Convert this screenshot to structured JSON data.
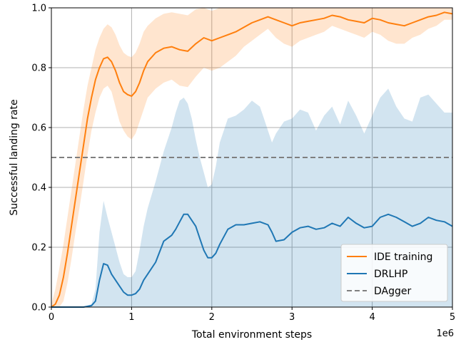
{
  "chart_data": {
    "type": "line",
    "xlabel": "Total environment steps",
    "ylabel": "Successful landing rate",
    "x_multiplier_label": "1e6",
    "xlim": [
      0,
      5
    ],
    "ylim": [
      0,
      1.0
    ],
    "x_ticks": [
      0,
      1,
      2,
      3,
      4,
      5
    ],
    "x_tick_labels": [
      "0",
      "1",
      "2",
      "3",
      "4",
      "5"
    ],
    "y_ticks": [
      0.0,
      0.2,
      0.4,
      0.6,
      0.8,
      1.0
    ],
    "y_tick_labels": [
      "0.0",
      "0.2",
      "0.4",
      "0.6",
      "0.8",
      "1.0"
    ],
    "grid": true,
    "legend_position": "bottom-right",
    "series": [
      {
        "name": "IDE training",
        "color": "#ff7f0e",
        "style": "solid",
        "x": [
          0,
          0.05,
          0.1,
          0.15,
          0.2,
          0.25,
          0.3,
          0.35,
          0.4,
          0.45,
          0.5,
          0.55,
          0.6,
          0.65,
          0.7,
          0.75,
          0.8,
          0.85,
          0.9,
          0.95,
          1.0,
          1.05,
          1.1,
          1.15,
          1.2,
          1.3,
          1.4,
          1.5,
          1.6,
          1.7,
          1.8,
          1.9,
          2.0,
          2.1,
          2.2,
          2.3,
          2.4,
          2.5,
          2.6,
          2.7,
          2.8,
          2.9,
          3.0,
          3.1,
          3.2,
          3.3,
          3.4,
          3.5,
          3.6,
          3.7,
          3.8,
          3.9,
          4.0,
          4.1,
          4.2,
          4.3,
          4.4,
          4.5,
          4.6,
          4.7,
          4.8,
          4.9,
          5.0
        ],
        "y": [
          0.0,
          0.01,
          0.04,
          0.1,
          0.18,
          0.27,
          0.36,
          0.45,
          0.54,
          0.63,
          0.7,
          0.76,
          0.8,
          0.83,
          0.835,
          0.82,
          0.79,
          0.75,
          0.72,
          0.71,
          0.705,
          0.72,
          0.75,
          0.79,
          0.82,
          0.85,
          0.865,
          0.87,
          0.86,
          0.855,
          0.88,
          0.9,
          0.89,
          0.9,
          0.91,
          0.92,
          0.935,
          0.95,
          0.96,
          0.97,
          0.96,
          0.95,
          0.94,
          0.95,
          0.955,
          0.96,
          0.965,
          0.975,
          0.97,
          0.96,
          0.955,
          0.95,
          0.965,
          0.96,
          0.95,
          0.945,
          0.94,
          0.95,
          0.96,
          0.97,
          0.975,
          0.985,
          0.98
        ],
        "upper": [
          0.01,
          0.06,
          0.13,
          0.21,
          0.3,
          0.39,
          0.48,
          0.57,
          0.66,
          0.74,
          0.8,
          0.86,
          0.9,
          0.93,
          0.945,
          0.935,
          0.91,
          0.875,
          0.85,
          0.84,
          0.835,
          0.85,
          0.88,
          0.92,
          0.94,
          0.965,
          0.98,
          0.985,
          0.98,
          0.975,
          0.995,
          1.0,
          0.99,
          1.0,
          1.0,
          1.0,
          1.0,
          1.0,
          1.0,
          1.0,
          1.0,
          1.0,
          1.0,
          1.0,
          1.0,
          1.0,
          1.0,
          1.0,
          1.0,
          1.0,
          1.0,
          1.0,
          1.0,
          1.0,
          1.0,
          1.0,
          1.0,
          1.0,
          1.0,
          1.0,
          1.0,
          1.0,
          1.0
        ],
        "lower": [
          0.0,
          0.0,
          0.0,
          0.02,
          0.08,
          0.16,
          0.25,
          0.33,
          0.42,
          0.51,
          0.59,
          0.65,
          0.7,
          0.73,
          0.74,
          0.72,
          0.67,
          0.62,
          0.59,
          0.57,
          0.56,
          0.58,
          0.62,
          0.66,
          0.7,
          0.73,
          0.75,
          0.76,
          0.74,
          0.735,
          0.77,
          0.8,
          0.79,
          0.8,
          0.82,
          0.84,
          0.87,
          0.89,
          0.91,
          0.93,
          0.9,
          0.88,
          0.87,
          0.89,
          0.9,
          0.91,
          0.92,
          0.94,
          0.93,
          0.92,
          0.91,
          0.9,
          0.92,
          0.91,
          0.89,
          0.88,
          0.88,
          0.9,
          0.91,
          0.93,
          0.94,
          0.96,
          0.96
        ]
      },
      {
        "name": "DRLHP",
        "color": "#1f77b4",
        "style": "solid",
        "x": [
          0,
          0.2,
          0.4,
          0.5,
          0.55,
          0.6,
          0.65,
          0.7,
          0.75,
          0.8,
          0.85,
          0.9,
          0.95,
          1.0,
          1.05,
          1.1,
          1.15,
          1.2,
          1.3,
          1.4,
          1.5,
          1.55,
          1.6,
          1.65,
          1.7,
          1.75,
          1.8,
          1.85,
          1.9,
          1.95,
          2.0,
          2.05,
          2.1,
          2.2,
          2.3,
          2.4,
          2.5,
          2.6,
          2.65,
          2.7,
          2.75,
          2.8,
          2.9,
          3.0,
          3.1,
          3.2,
          3.3,
          3.4,
          3.5,
          3.6,
          3.7,
          3.8,
          3.9,
          4.0,
          4.1,
          4.2,
          4.3,
          4.4,
          4.5,
          4.6,
          4.7,
          4.8,
          4.9,
          5.0
        ],
        "y": [
          0.0,
          0.0,
          0.0,
          0.005,
          0.02,
          0.09,
          0.145,
          0.14,
          0.11,
          0.09,
          0.07,
          0.05,
          0.04,
          0.04,
          0.045,
          0.06,
          0.09,
          0.11,
          0.15,
          0.22,
          0.24,
          0.26,
          0.285,
          0.31,
          0.31,
          0.29,
          0.27,
          0.23,
          0.19,
          0.165,
          0.165,
          0.18,
          0.21,
          0.26,
          0.275,
          0.275,
          0.28,
          0.285,
          0.28,
          0.275,
          0.25,
          0.22,
          0.225,
          0.25,
          0.265,
          0.27,
          0.26,
          0.265,
          0.28,
          0.27,
          0.3,
          0.28,
          0.265,
          0.27,
          0.3,
          0.31,
          0.3,
          0.285,
          0.27,
          0.28,
          0.3,
          0.29,
          0.285,
          0.27
        ],
        "upper": [
          0.0,
          0.0,
          0.0,
          0.01,
          0.06,
          0.25,
          0.355,
          0.3,
          0.25,
          0.2,
          0.15,
          0.11,
          0.1,
          0.1,
          0.12,
          0.19,
          0.27,
          0.33,
          0.42,
          0.52,
          0.6,
          0.65,
          0.69,
          0.7,
          0.68,
          0.63,
          0.56,
          0.5,
          0.45,
          0.4,
          0.41,
          0.47,
          0.55,
          0.63,
          0.64,
          0.66,
          0.69,
          0.67,
          0.63,
          0.59,
          0.55,
          0.58,
          0.62,
          0.63,
          0.66,
          0.65,
          0.59,
          0.64,
          0.67,
          0.61,
          0.69,
          0.64,
          0.58,
          0.64,
          0.7,
          0.73,
          0.67,
          0.63,
          0.62,
          0.7,
          0.71,
          0.68,
          0.65,
          0.65
        ]
      },
      {
        "name": "DAgger",
        "color": "#7f7f7f",
        "style": "dashed",
        "x": [
          0,
          5
        ],
        "y": [
          0.5,
          0.5
        ]
      }
    ]
  }
}
